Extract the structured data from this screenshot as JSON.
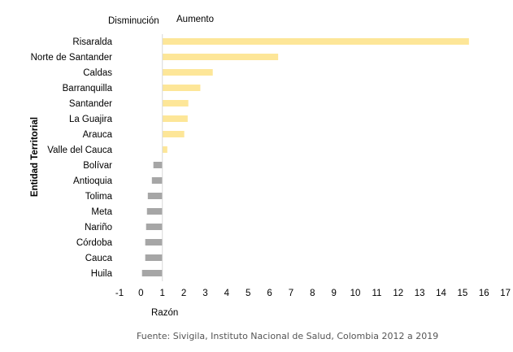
{
  "chart_data": {
    "type": "bar",
    "orientation": "horizontal",
    "baseline": 1,
    "header_left": "Disminución",
    "header_right": "Aumento",
    "xlabel": "Razón",
    "ylabel": "Entidad Territorial",
    "xlim": [
      -1,
      17
    ],
    "xticks": [
      "-1",
      "0",
      "1",
      "2",
      "3",
      "4",
      "5",
      "6",
      "7",
      "8",
      "9",
      "10",
      "11",
      "12",
      "13",
      "14",
      "15",
      "16",
      "17"
    ],
    "grid": false,
    "colors": {
      "increase": "#fde698",
      "decrease": "#a6a6a6",
      "axis": "#d9d9d9"
    },
    "categories": [
      "Risaralda",
      "Norte de Santander",
      "Caldas",
      "Barranquilla",
      "Santander",
      "La Guajira",
      "Arauca",
      "Valle del Cauca",
      "Bolívar",
      "Antioquia",
      "Tolima",
      "Meta",
      "Nariño",
      "Córdoba",
      "Cauca",
      "Huila"
    ],
    "values": [
      15.3,
      6.4,
      3.35,
      2.77,
      2.21,
      2.18,
      2.02,
      1.23,
      0.58,
      0.51,
      0.32,
      0.28,
      0.24,
      0.2,
      0.2,
      0.05
    ]
  },
  "source": "Fuente: Sivigila, Instituto Nacional de Salud, Colombia 2012 a 2019"
}
